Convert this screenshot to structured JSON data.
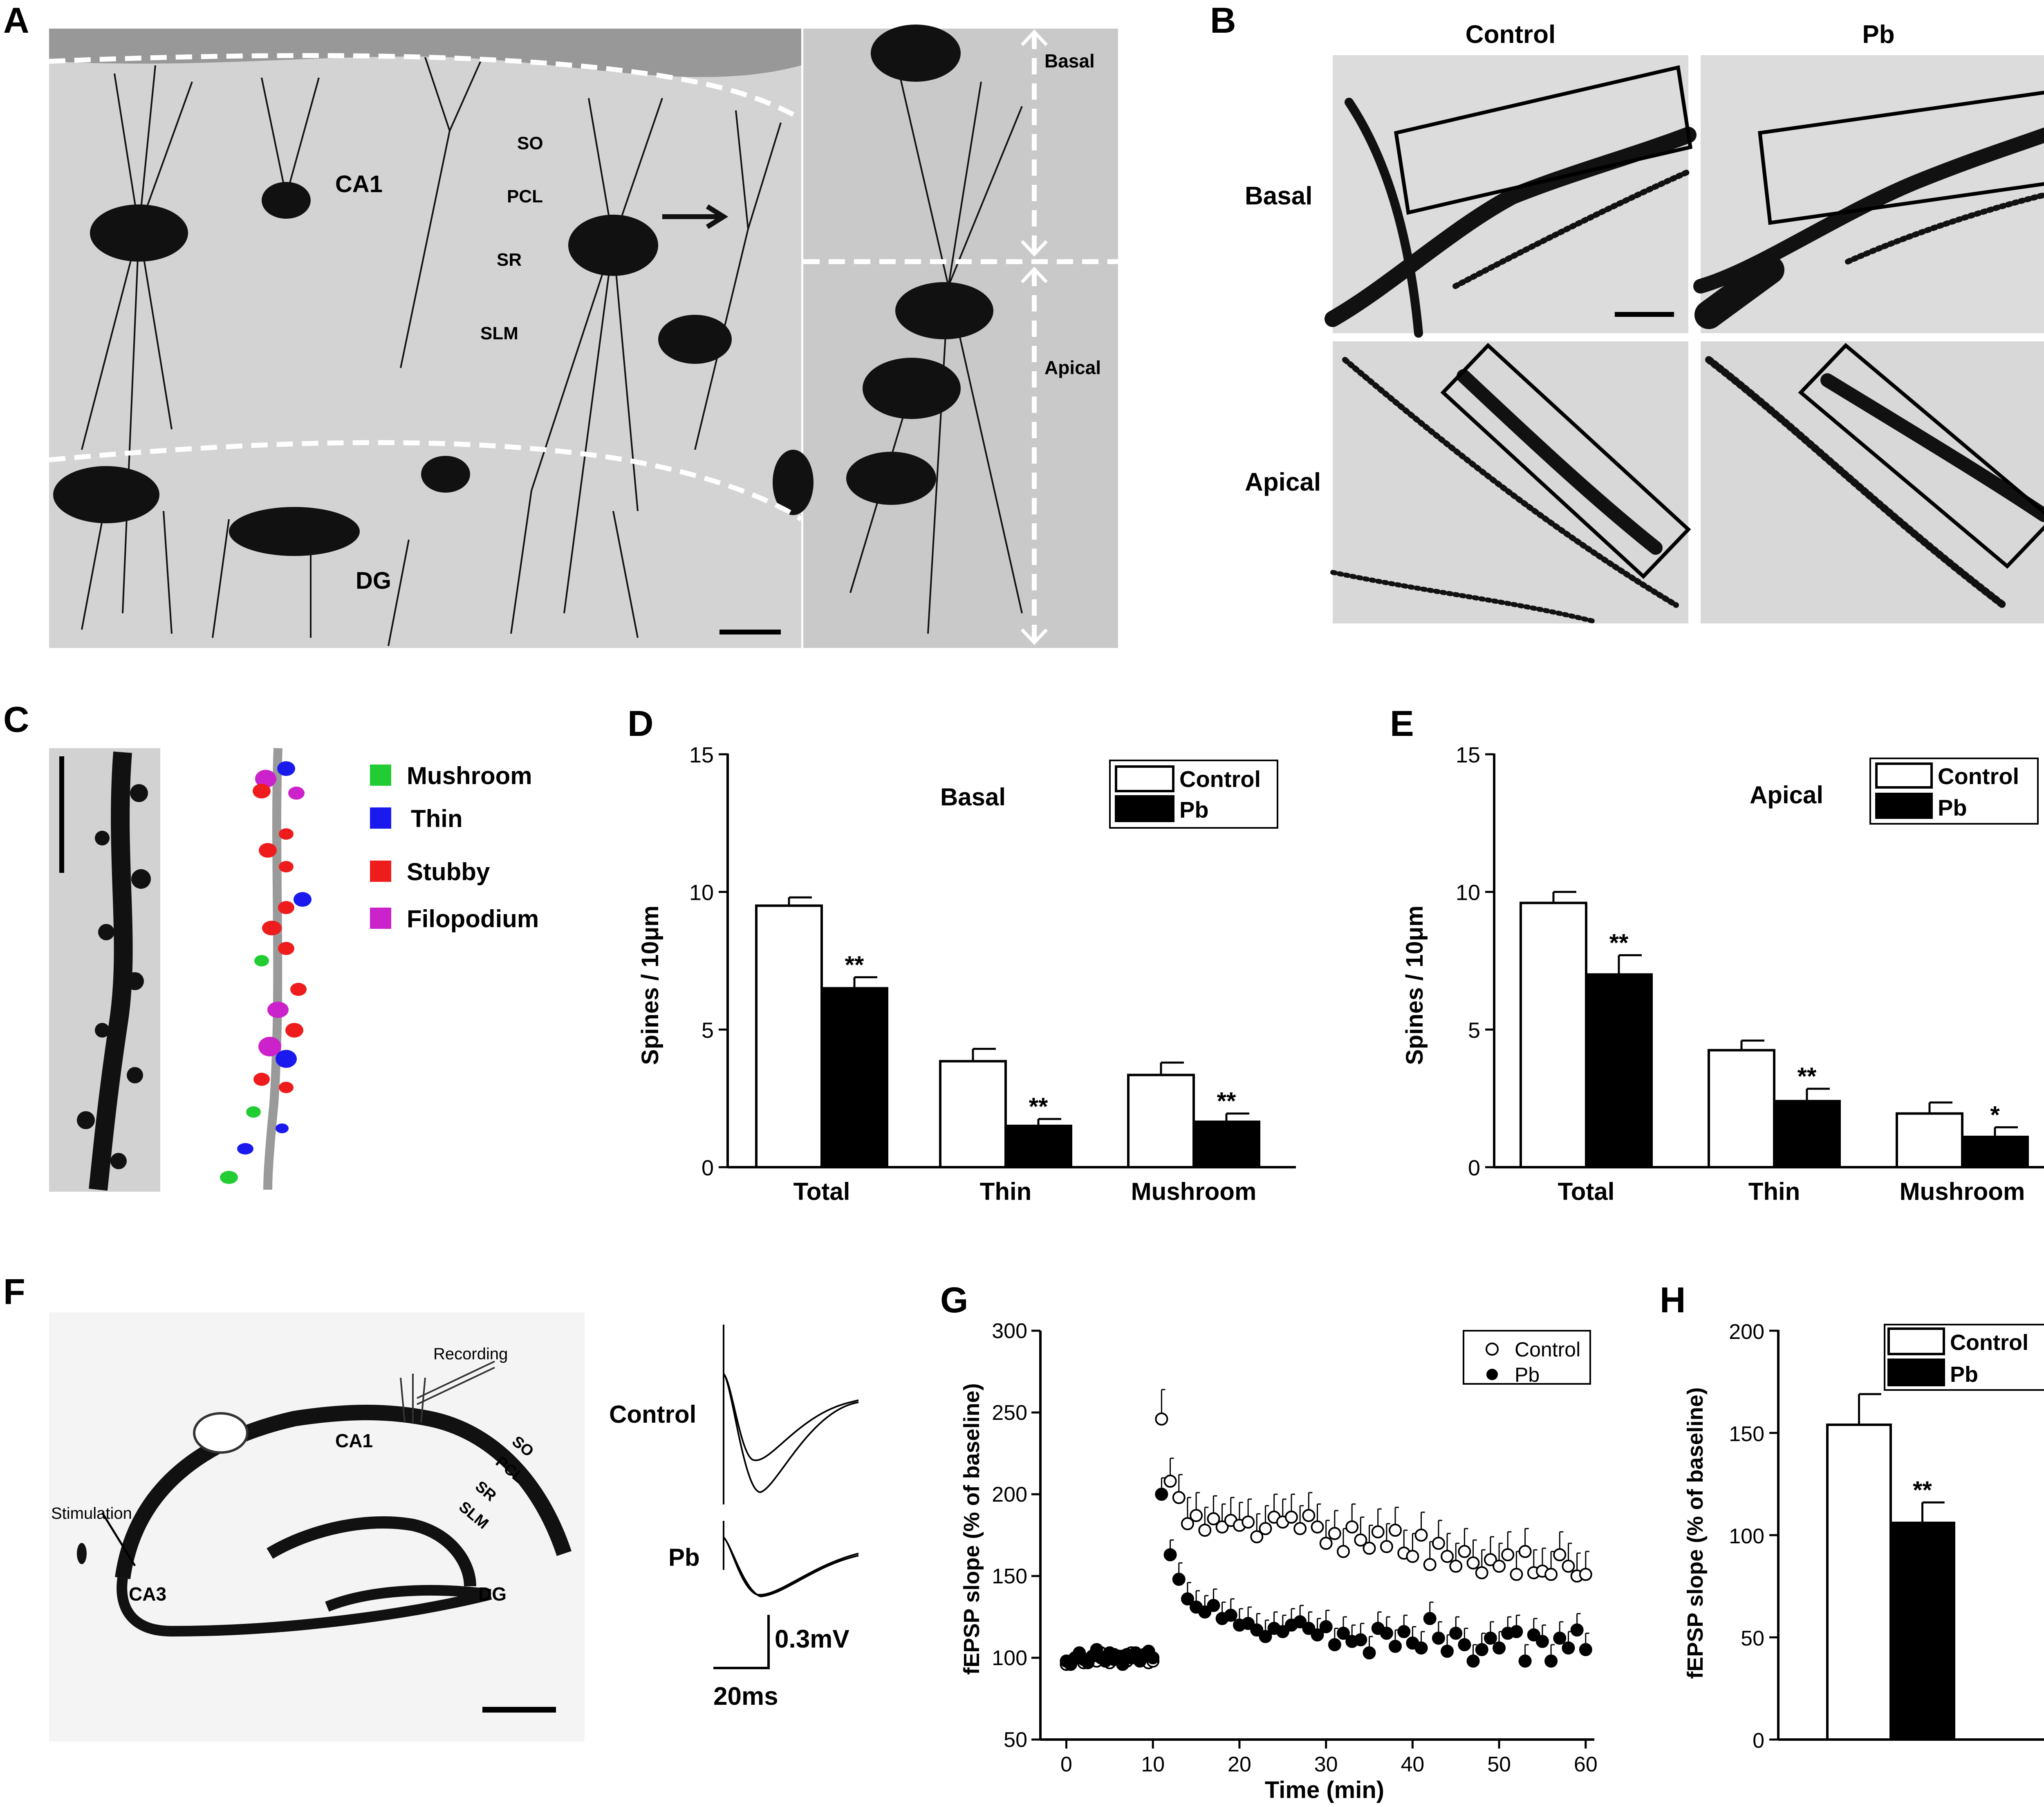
{
  "panel_letters": [
    "A",
    "B",
    "C",
    "D",
    "E",
    "F",
    "G",
    "H"
  ],
  "panel_a": {
    "regions": [
      "CA1",
      "DG"
    ],
    "layers": [
      "SO",
      "PCL",
      "SR",
      "SLM"
    ],
    "dendrite_labels": {
      "basal": "Basal",
      "apical": "Apical"
    }
  },
  "panel_b": {
    "columns": [
      "Control",
      "Pb"
    ],
    "rows": [
      "Basal",
      "Apical"
    ]
  },
  "panel_c": {
    "legend": [
      {
        "label": "Mushroom",
        "color": "#22cc33"
      },
      {
        "label": "Thin",
        "color": "#1a1aee"
      },
      {
        "label": "Stubby",
        "color": "#ee1c1c"
      },
      {
        "label": "Filopodium",
        "color": "#cc22cc"
      }
    ]
  },
  "panel_f": {
    "slice_labels": {
      "recording": "Recording",
      "stimulation": "Stimulation",
      "ca1": "CA1",
      "ca3": "CA3",
      "dg": "DG",
      "so": "SO",
      "pcl": "PCL",
      "sr": "SR",
      "slm": "SLM"
    },
    "trace_labels": [
      "Control",
      "Pb"
    ],
    "scale_voltage": "0.3mV",
    "scale_time": "20ms"
  },
  "chart_data": [
    {
      "panel": "D",
      "type": "bar",
      "title": "Basal",
      "ylabel": "Spines / 10μm",
      "ylim": [
        0,
        15
      ],
      "yticks": [
        0,
        5,
        10,
        15
      ],
      "categories": [
        "Total",
        "Thin",
        "Mushroom"
      ],
      "legend_placement": "top-right",
      "series": [
        {
          "name": "Control",
          "color": "#ffffff",
          "values": [
            9.5,
            3.85,
            3.35
          ],
          "errors": [
            0.3,
            0.45,
            0.45
          ],
          "significance": [
            "",
            "",
            ""
          ]
        },
        {
          "name": "Pb",
          "color": "#000000",
          "values": [
            6.5,
            1.5,
            1.65
          ],
          "errors": [
            0.4,
            0.25,
            0.3
          ],
          "significance": [
            "**",
            "**",
            "**"
          ]
        }
      ]
    },
    {
      "panel": "E",
      "type": "bar",
      "title": "Apical",
      "ylabel": "Spines / 10μm",
      "ylim": [
        0,
        15
      ],
      "yticks": [
        0,
        5,
        10,
        15
      ],
      "categories": [
        "Total",
        "Thin",
        "Mushroom"
      ],
      "legend_placement": "top-right",
      "series": [
        {
          "name": "Control",
          "color": "#ffffff",
          "values": [
            9.6,
            4.25,
            1.95
          ],
          "errors": [
            0.4,
            0.35,
            0.4
          ],
          "significance": [
            "",
            "",
            ""
          ]
        },
        {
          "name": "Pb",
          "color": "#000000",
          "values": [
            7.0,
            2.4,
            1.1
          ],
          "errors": [
            0.7,
            0.45,
            0.35
          ],
          "significance": [
            "**",
            "**",
            "*"
          ]
        }
      ]
    },
    {
      "panel": "G",
      "type": "scatter",
      "xlabel": "Time (min)",
      "ylabel": "fEPSP slope (% of baseline)",
      "xlim": [
        -3,
        61
      ],
      "ylim": [
        50,
        300
      ],
      "xticks": [
        0,
        10,
        20,
        30,
        40,
        50,
        60
      ],
      "yticks": [
        50,
        100,
        150,
        200,
        250,
        300
      ],
      "legend_placement": "top-right",
      "series": [
        {
          "name": "Control",
          "marker": "open-circle",
          "x": [
            0,
            0.5,
            1,
            1.5,
            2,
            2.5,
            3,
            3.5,
            4,
            4.5,
            5,
            5.5,
            6,
            6.5,
            7,
            7.5,
            8,
            8.5,
            9,
            9.5,
            10,
            11,
            12,
            13,
            14,
            15,
            16,
            17,
            18,
            19,
            20,
            21,
            22,
            23,
            24,
            25,
            26,
            27,
            28,
            29,
            30,
            31,
            32,
            33,
            34,
            35,
            36,
            37,
            38,
            39,
            40,
            41,
            42,
            43,
            44,
            45,
            46,
            47,
            48,
            49,
            50,
            51,
            52,
            53,
            54,
            55,
            56,
            57,
            58,
            59,
            60
          ],
          "y": [
            96,
            98,
            100,
            102,
            97,
            99,
            101,
            98,
            103,
            100,
            97,
            102,
            99,
            101,
            98,
            103,
            100,
            99,
            102,
            97,
            98,
            246,
            208,
            198,
            182,
            187,
            178,
            185,
            180,
            184,
            181,
            183,
            174,
            179,
            186,
            183,
            186,
            179,
            187,
            180,
            170,
            176,
            165,
            180,
            172,
            167,
            177,
            168,
            178,
            164,
            162,
            175,
            157,
            170,
            162,
            156,
            165,
            158,
            152,
            160,
            156,
            163,
            151,
            165,
            152,
            153,
            151,
            163,
            156,
            150,
            151
          ],
          "errors": [
            3,
            3,
            3,
            3,
            3,
            3,
            3,
            3,
            3,
            3,
            3,
            3,
            3,
            3,
            3,
            3,
            3,
            3,
            3,
            3,
            3,
            18,
            14,
            14,
            16,
            14,
            14,
            14,
            14,
            14,
            14,
            14,
            14,
            14,
            14,
            14,
            14,
            14,
            14,
            14,
            14,
            14,
            14,
            14,
            14,
            14,
            14,
            14,
            14,
            14,
            14,
            14,
            14,
            14,
            14,
            14,
            14,
            14,
            14,
            14,
            14,
            14,
            14,
            14,
            14,
            14,
            14,
            14,
            14,
            14,
            14
          ]
        },
        {
          "name": "Pb",
          "marker": "filled-circle",
          "x": [
            0,
            0.5,
            1,
            1.5,
            2,
            2.5,
            3,
            3.5,
            4,
            4.5,
            5,
            5.5,
            6,
            6.5,
            7,
            7.5,
            8,
            8.5,
            9,
            9.5,
            10,
            11,
            12,
            13,
            14,
            15,
            16,
            17,
            18,
            19,
            20,
            21,
            22,
            23,
            24,
            25,
            26,
            27,
            28,
            29,
            30,
            31,
            32,
            33,
            34,
            35,
            36,
            37,
            38,
            39,
            40,
            41,
            42,
            43,
            44,
            45,
            46,
            47,
            48,
            49,
            50,
            51,
            52,
            53,
            54,
            55,
            56,
            57,
            58,
            59,
            60
          ],
          "y": [
            98,
            96,
            100,
            103,
            99,
            97,
            101,
            105,
            100,
            98,
            103,
            99,
            101,
            96,
            102,
            100,
            103,
            98,
            101,
            104,
            100,
            200,
            163,
            148,
            136,
            131,
            128,
            132,
            124,
            126,
            120,
            121,
            117,
            113,
            118,
            116,
            120,
            122,
            118,
            114,
            119,
            108,
            115,
            110,
            111,
            103,
            118,
            115,
            107,
            116,
            109,
            106,
            124,
            112,
            104,
            115,
            108,
            98,
            105,
            112,
            106,
            115,
            116,
            98,
            114,
            110,
            98,
            112,
            106,
            117,
            105
          ],
          "errors": [
            3,
            3,
            3,
            3,
            3,
            3,
            3,
            3,
            3,
            3,
            3,
            3,
            3,
            3,
            3,
            3,
            3,
            3,
            3,
            3,
            3,
            10,
            9,
            10,
            10,
            10,
            10,
            10,
            10,
            10,
            10,
            10,
            10,
            10,
            10,
            10,
            10,
            10,
            10,
            10,
            10,
            10,
            10,
            10,
            10,
            10,
            10,
            10,
            10,
            10,
            10,
            10,
            10,
            10,
            10,
            10,
            10,
            10,
            10,
            10,
            10,
            10,
            10,
            10,
            10,
            10,
            10,
            10,
            10,
            10,
            10
          ]
        }
      ]
    },
    {
      "panel": "H",
      "type": "bar",
      "ylabel": "fEPSP slope (% of baseline)",
      "ylim": [
        0,
        200
      ],
      "yticks": [
        0,
        50,
        100,
        150,
        200
      ],
      "legend_placement": "top-right",
      "series": [
        {
          "name": "Control",
          "color": "#ffffff",
          "values": [
            154
          ],
          "errors": [
            15
          ],
          "significance": [
            ""
          ]
        },
        {
          "name": "Pb",
          "color": "#000000",
          "values": [
            106
          ],
          "errors": [
            10
          ],
          "significance": [
            "**"
          ]
        }
      ]
    }
  ]
}
